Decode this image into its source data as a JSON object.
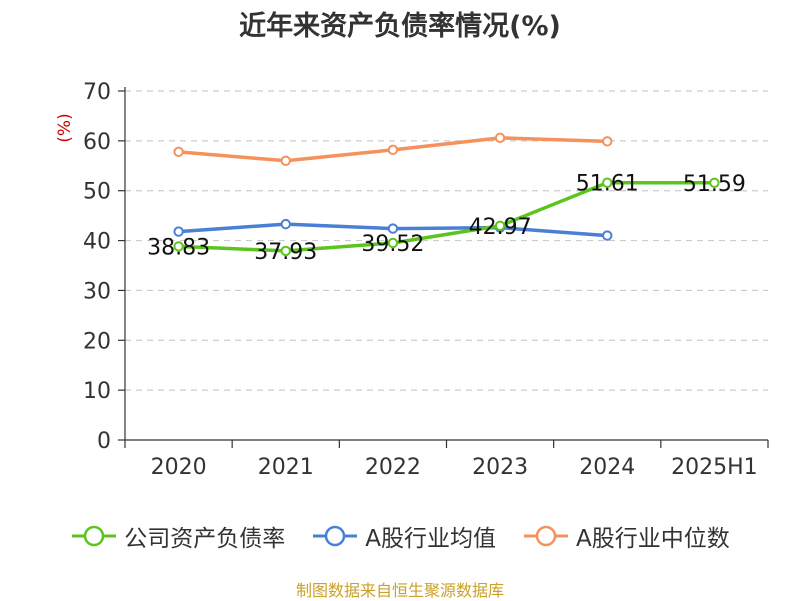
{
  "chart_data": {
    "type": "line",
    "title": "近年来资产负债率情况(%)",
    "ylabel": "(%)",
    "xlabel": "",
    "categories": [
      "2020",
      "2021",
      "2022",
      "2023",
      "2024",
      "2025H1"
    ],
    "ylim": [
      0,
      70
    ],
    "yticks": [
      0,
      10,
      20,
      30,
      40,
      50,
      60,
      70
    ],
    "grid": true,
    "legend_position": "bottom",
    "series": [
      {
        "name": "公司资产负债率",
        "color": "#5cc41f",
        "values": [
          38.83,
          37.93,
          39.52,
          42.97,
          51.61,
          51.59
        ],
        "labels": [
          "38.83",
          "37.93",
          "39.52",
          "42.97",
          "51.61",
          "51.59"
        ]
      },
      {
        "name": "A股行业均值",
        "color": "#4a7fd6",
        "values": [
          41.8,
          43.3,
          42.4,
          42.6,
          41.0,
          null
        ]
      },
      {
        "name": "A股行业中位数",
        "color": "#f5915a",
        "values": [
          57.8,
          56.0,
          58.2,
          60.6,
          59.9,
          null
        ]
      }
    ]
  },
  "footer": {
    "source": "制图数据来自恒生聚源数据库"
  }
}
